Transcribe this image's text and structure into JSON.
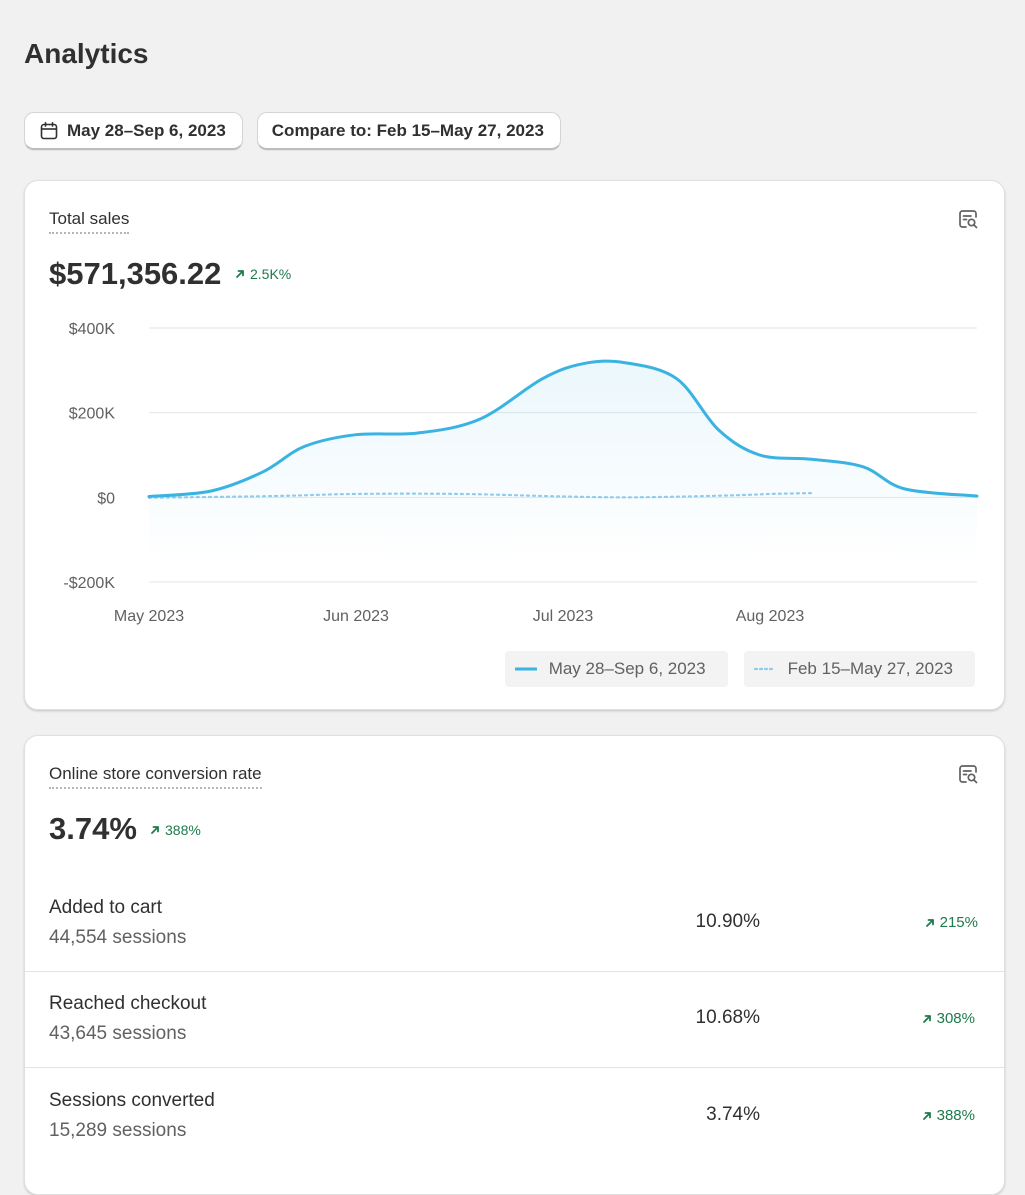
{
  "page": {
    "title": "Analytics"
  },
  "filters": {
    "date_range": "May 28–Sep 6, 2023",
    "compare": "Compare to: Feb 15–May 27, 2023"
  },
  "colors": {
    "primary_series": "#3ab3e3",
    "comparison_series": "#8fcbea",
    "positive_delta": "#1f7a4c"
  },
  "total_sales": {
    "title": "Total sales",
    "value": "$571,356.22",
    "delta": "2.5K%",
    "delta_icon": "arrow-up-right-icon",
    "explore_icon": "explore-report-icon"
  },
  "chart_data": {
    "type": "line",
    "title": "Total sales",
    "x_tick_labels": [
      "May 2023",
      "Jun 2023",
      "Jul 2023",
      "Aug 2023"
    ],
    "y_tick_labels": [
      "$400K",
      "$200K",
      "$0",
      "-$200K"
    ],
    "y_ticks": [
      400000,
      200000,
      0,
      -200000
    ],
    "ylim": [
      -200000,
      400000
    ],
    "x_unit": "month index (0 = May 28, 2023)",
    "xlim": [
      0,
      4.0
    ],
    "series": [
      {
        "name": "May 28–Sep 6, 2023",
        "style": "solid",
        "points": [
          [
            0,
            2000
          ],
          [
            0.3,
            15000
          ],
          [
            0.55,
            60000
          ],
          [
            0.75,
            120000
          ],
          [
            1.0,
            148000
          ],
          [
            1.3,
            152000
          ],
          [
            1.6,
            185000
          ],
          [
            1.9,
            280000
          ],
          [
            2.1,
            316000
          ],
          [
            2.3,
            318000
          ],
          [
            2.55,
            280000
          ],
          [
            2.75,
            160000
          ],
          [
            2.95,
            100000
          ],
          [
            3.2,
            90000
          ],
          [
            3.45,
            72000
          ],
          [
            3.65,
            20000
          ],
          [
            4.0,
            3000
          ]
        ]
      },
      {
        "name": "Feb 15–May 27, 2023",
        "style": "dotted",
        "points": [
          [
            0,
            -1000
          ],
          [
            0.6,
            3000
          ],
          [
            1.0,
            8000
          ],
          [
            1.5,
            8000
          ],
          [
            2.0,
            2000
          ],
          [
            2.3,
            0
          ],
          [
            2.6,
            2000
          ],
          [
            2.9,
            6000
          ],
          [
            3.2,
            10000
          ],
          [
            3.0,
            8000
          ]
        ]
      }
    ],
    "legend": [
      "May 28–Sep 6, 2023",
      "Feb 15–May 27, 2023"
    ],
    "legend_position": "bottom-right",
    "grid": true
  },
  "conversion": {
    "title": "Online store conversion rate",
    "value": "3.74%",
    "delta": "388%",
    "explore_icon": "explore-report-icon",
    "rows": [
      {
        "label": "Added to cart",
        "sessions": "44,554 sessions",
        "pct": "10.90%",
        "delta": "215%"
      },
      {
        "label": "Reached checkout",
        "sessions": "43,645 sessions",
        "pct": "10.68%",
        "delta": "308%"
      },
      {
        "label": "Sessions converted",
        "sessions": "15,289 sessions",
        "pct": "3.74%",
        "delta": "388%"
      }
    ]
  }
}
